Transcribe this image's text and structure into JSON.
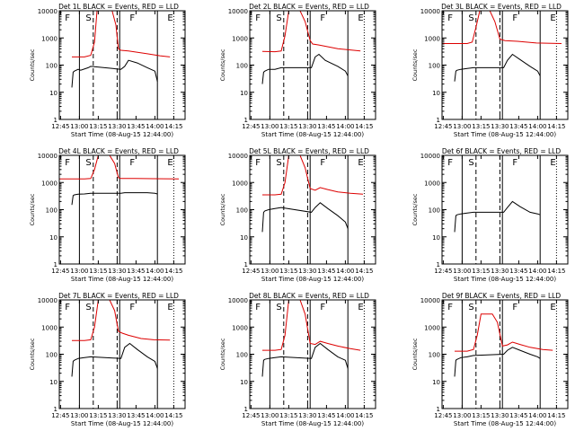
{
  "figure": {
    "colors": {
      "events": "#000000",
      "lld": "#dd0000",
      "axis": "#000000"
    },
    "x_tick_labels": [
      "12:45",
      "13:00",
      "13:15",
      "13:30",
      "13:45",
      "14:00",
      "14:15"
    ],
    "y_tick_labels": [
      "1",
      "10",
      "100",
      "1000",
      "10000"
    ],
    "xlabel": "Start Time (08-Aug-15 12:44:00)",
    "ylabel": "Counts/sec"
  },
  "chart_data": [
    {
      "type": "line",
      "panel": 1,
      "title": "Det 1L BLACK = Events, RED = LLD",
      "xlabel": "Start Time (08-Aug-15 12:44:00)",
      "ylabel": "Counts/sec",
      "x_units": "minutes after 12:44:00",
      "xlim": [
        0,
        100
      ],
      "ylim": [
        1,
        10000
      ],
      "y_scale": "log",
      "x_tick_labels": [
        "12:45",
        "13:00",
        "13:15",
        "13:30",
        "13:45",
        "14:00",
        "14:15"
      ],
      "y_tick_labels": [
        "1",
        "10",
        "100",
        "1000",
        "10000"
      ],
      "marker_letters": [
        "F",
        "S",
        "F",
        "E"
      ],
      "solid_vlines": [
        16,
        48,
        78
      ],
      "dashed_vlines": [
        27,
        46
      ],
      "dotted_vlines": [
        91
      ],
      "series": [
        {
          "name": "LLD",
          "color": "#dd0000",
          "x": [
            10,
            20,
            25,
            28,
            30,
            42,
            45,
            47,
            49,
            55,
            70,
            80,
            88
          ],
          "y": [
            200,
            200,
            230,
            700,
            10000,
            10000,
            3000,
            400,
            350,
            330,
            260,
            220,
            200
          ]
        },
        {
          "name": "Events",
          "color": "#000000",
          "x": [
            10,
            11,
            12,
            15,
            17,
            23,
            25,
            49,
            52,
            55,
            62,
            70,
            76,
            78
          ],
          "y": [
            15,
            55,
            60,
            70,
            65,
            80,
            90,
            70,
            90,
            150,
            120,
            80,
            60,
            25
          ]
        }
      ]
    },
    {
      "type": "line",
      "panel": 2,
      "title": "Det 2L BLACK = Events, RED = LLD",
      "xlabel": "Start Time (08-Aug-15 12:44:00)",
      "ylabel": "Counts/sec",
      "x_units": "minutes after 12:44:00",
      "xlim": [
        0,
        100
      ],
      "ylim": [
        1,
        10000
      ],
      "y_scale": "log",
      "x_tick_labels": [
        "12:45",
        "13:00",
        "13:15",
        "13:30",
        "13:45",
        "14:00",
        "14:15"
      ],
      "y_tick_labels": [
        "1",
        "10",
        "100",
        "1000",
        "10000"
      ],
      "marker_letters": [
        "F",
        "S",
        "F",
        "E"
      ],
      "solid_vlines": [
        16,
        48,
        78
      ],
      "dashed_vlines": [
        27,
        46
      ],
      "dotted_vlines": [
        91
      ],
      "series": [
        {
          "name": "LLD",
          "color": "#dd0000",
          "x": [
            10,
            20,
            25,
            28,
            31,
            40,
            44,
            48,
            50,
            55,
            70,
            88
          ],
          "y": [
            320,
            310,
            330,
            1200,
            10000,
            10000,
            4000,
            800,
            600,
            550,
            400,
            330
          ]
        },
        {
          "name": "Events",
          "color": "#000000",
          "x": [
            10,
            11,
            12,
            15,
            20,
            25,
            49,
            52,
            55,
            60,
            70,
            76,
            78
          ],
          "y": [
            20,
            55,
            60,
            70,
            70,
            80,
            80,
            200,
            250,
            150,
            90,
            60,
            40
          ]
        }
      ]
    },
    {
      "type": "line",
      "panel": 3,
      "title": "Det 3L BLACK = Events, RED = LLD",
      "xlabel": "Start Time (08-Aug-15 12:44:00)",
      "ylabel": "Counts/sec",
      "x_units": "minutes after 12:44:00",
      "xlim": [
        0,
        100
      ],
      "ylim": [
        1,
        10000
      ],
      "y_scale": "log",
      "x_tick_labels": [
        "12:45",
        "13:00",
        "13:15",
        "13:30",
        "13:45",
        "14:00",
        "14:15"
      ],
      "y_tick_labels": [
        "1",
        "10",
        "100",
        "1000",
        "10000"
      ],
      "marker_letters": [
        "F",
        "S",
        "F",
        "E"
      ],
      "solid_vlines": [
        16,
        48,
        78
      ],
      "dashed_vlines": [
        27,
        46
      ],
      "dotted_vlines": [
        91
      ],
      "series": [
        {
          "name": "LLD",
          "color": "#dd0000",
          "x": [
            0,
            20,
            24,
            27,
            30,
            38,
            42,
            46,
            50,
            60,
            75,
            95
          ],
          "y": [
            620,
            620,
            700,
            2500,
            10000,
            10000,
            4000,
            900,
            800,
            750,
            650,
            620
          ]
        },
        {
          "name": "Events",
          "color": "#000000",
          "x": [
            10,
            11,
            12,
            15,
            20,
            25,
            49,
            52,
            56,
            62,
            70,
            76,
            78
          ],
          "y": [
            25,
            60,
            65,
            70,
            75,
            80,
            80,
            150,
            250,
            160,
            90,
            60,
            40
          ]
        }
      ]
    },
    {
      "type": "line",
      "panel": 4,
      "title": "Det 4L BLACK = Events, RED = LLD",
      "xlabel": "Start Time (08-Aug-15 12:44:00)",
      "ylabel": "Counts/sec",
      "x_units": "minutes after 12:44:00",
      "xlim": [
        0,
        100
      ],
      "ylim": [
        1,
        10000
      ],
      "y_scale": "log",
      "x_tick_labels": [
        "12:45",
        "13:00",
        "13:15",
        "13:30",
        "13:45",
        "14:00",
        "14:15"
      ],
      "y_tick_labels": [
        "1",
        "10",
        "100",
        "1000",
        "10000"
      ],
      "marker_letters": [
        "F",
        "S",
        "F",
        "E"
      ],
      "solid_vlines": [
        16,
        48,
        78
      ],
      "dashed_vlines": [
        27,
        46
      ],
      "dotted_vlines": [
        91
      ],
      "series": [
        {
          "name": "LLD",
          "color": "#dd0000",
          "x": [
            0,
            20,
            25,
            28,
            31,
            40,
            44,
            47,
            49,
            60,
            75,
            95
          ],
          "y": [
            1350,
            1350,
            1400,
            3000,
            10000,
            10000,
            5000,
            1500,
            1400,
            1400,
            1380,
            1350
          ]
        },
        {
          "name": "Events",
          "color": "#000000",
          "x": [
            10,
            11,
            12,
            15,
            20,
            25,
            49,
            52,
            60,
            70,
            76,
            78
          ],
          "y": [
            150,
            330,
            350,
            370,
            380,
            400,
            400,
            420,
            420,
            420,
            400,
            380
          ]
        }
      ]
    },
    {
      "type": "line",
      "panel": 5,
      "title": "Det 5L BLACK = Events, RED = LLD",
      "xlabel": "Start Time (08-Aug-15 12:44:00)",
      "ylabel": "Counts/sec",
      "x_units": "minutes after 12:44:00",
      "xlim": [
        0,
        100
      ],
      "ylim": [
        1,
        10000
      ],
      "y_scale": "log",
      "x_tick_labels": [
        "12:45",
        "13:00",
        "13:15",
        "13:30",
        "13:45",
        "14:00",
        "14:15"
      ],
      "y_tick_labels": [
        "1",
        "10",
        "100",
        "1000",
        "10000"
      ],
      "marker_letters": [
        "F",
        "S",
        "F",
        "E"
      ],
      "solid_vlines": [
        16,
        48,
        78
      ],
      "dashed_vlines": [
        27,
        46
      ],
      "dotted_vlines": [
        91
      ],
      "series": [
        {
          "name": "LLD",
          "color": "#dd0000",
          "x": [
            10,
            20,
            25,
            28,
            31,
            40,
            44,
            48,
            52,
            56,
            62,
            70,
            80,
            90
          ],
          "y": [
            350,
            350,
            370,
            1000,
            10000,
            10000,
            3500,
            600,
            520,
            650,
            550,
            450,
            400,
            370
          ]
        },
        {
          "name": "Events",
          "color": "#000000",
          "x": [
            10,
            11,
            12,
            15,
            20,
            25,
            49,
            52,
            56,
            62,
            70,
            76,
            78
          ],
          "y": [
            15,
            80,
            90,
            100,
            110,
            120,
            80,
            120,
            180,
            110,
            60,
            35,
            20
          ]
        }
      ]
    },
    {
      "type": "line",
      "panel": 6,
      "title": "Det 6f BLACK = Events, RED = LLD",
      "xlabel": "Start Time (08-Aug-15 12:44:00)",
      "ylabel": "Counts/sec",
      "x_units": "minutes after 12:44:00",
      "xlim": [
        0,
        100
      ],
      "ylim": [
        1,
        10000
      ],
      "y_scale": "log",
      "x_tick_labels": [
        "12:45",
        "13:00",
        "13:15",
        "13:30",
        "13:45",
        "14:00",
        "14:15"
      ],
      "y_tick_labels": [
        "1",
        "10",
        "100",
        "1000",
        "10000"
      ],
      "marker_letters": [
        "F",
        "S",
        "F",
        "E"
      ],
      "solid_vlines": [
        16,
        48,
        78
      ],
      "dashed_vlines": [
        27,
        46
      ],
      "dotted_vlines": [
        91
      ],
      "series": [
        {
          "name": "Events",
          "color": "#000000",
          "x": [
            10,
            11,
            12,
            15,
            20,
            25,
            49,
            52,
            56,
            62,
            70,
            76,
            78
          ],
          "y": [
            15,
            60,
            65,
            70,
            75,
            80,
            80,
            120,
            200,
            130,
            80,
            70,
            65
          ]
        }
      ]
    },
    {
      "type": "line",
      "panel": 7,
      "title": "Det 7L BLACK = Events, RED = LLD",
      "xlabel": "Start Time (08-Aug-15 12:44:00)",
      "ylabel": "Counts/sec",
      "x_units": "minutes after 12:44:00",
      "xlim": [
        0,
        100
      ],
      "ylim": [
        1,
        10000
      ],
      "y_scale": "log",
      "x_tick_labels": [
        "12:45",
        "13:00",
        "13:15",
        "13:30",
        "13:45",
        "14:00",
        "14:15"
      ],
      "y_tick_labels": [
        "1",
        "10",
        "100",
        "1000",
        "10000"
      ],
      "marker_letters": [
        "F",
        "S",
        "F",
        "E"
      ],
      "solid_vlines": [
        16,
        48,
        78
      ],
      "dashed_vlines": [
        27,
        46
      ],
      "dotted_vlines": [
        91
      ],
      "series": [
        {
          "name": "LLD",
          "color": "#dd0000",
          "x": [
            10,
            20,
            25,
            28,
            31,
            40,
            44,
            47,
            50,
            55,
            65,
            75,
            88
          ],
          "y": [
            320,
            320,
            340,
            1000,
            10000,
            10000,
            4000,
            700,
            600,
            500,
            380,
            340,
            330
          ]
        },
        {
          "name": "Events",
          "color": "#000000",
          "x": [
            10,
            11,
            12,
            15,
            20,
            25,
            49,
            52,
            56,
            62,
            70,
            76,
            78
          ],
          "y": [
            15,
            55,
            60,
            70,
            75,
            80,
            70,
            180,
            250,
            150,
            80,
            55,
            30
          ]
        }
      ]
    },
    {
      "type": "line",
      "panel": 8,
      "title": "Det 8L BLACK = Events, RED = LLD",
      "xlabel": "Start Time (08-Aug-15 12:44:00)",
      "ylabel": "Counts/sec",
      "x_units": "minutes after 12:44:00",
      "xlim": [
        0,
        100
      ],
      "ylim": [
        1,
        10000
      ],
      "y_scale": "log",
      "x_tick_labels": [
        "12:45",
        "13:00",
        "13:15",
        "13:30",
        "13:45",
        "14:00",
        "14:15"
      ],
      "y_tick_labels": [
        "1",
        "10",
        "100",
        "1000",
        "10000"
      ],
      "marker_letters": [
        "F",
        "S",
        "F",
        "E"
      ],
      "solid_vlines": [
        16,
        48,
        78
      ],
      "dashed_vlines": [
        27,
        46
      ],
      "dotted_vlines": [
        91
      ],
      "series": [
        {
          "name": "LLD",
          "color": "#dd0000",
          "x": [
            10,
            20,
            25,
            28,
            31,
            40,
            44,
            48,
            52,
            56,
            62,
            70,
            80,
            88
          ],
          "y": [
            140,
            140,
            150,
            500,
            10000,
            10000,
            3000,
            250,
            230,
            300,
            250,
            200,
            160,
            140
          ]
        },
        {
          "name": "Events",
          "color": "#000000",
          "x": [
            10,
            11,
            12,
            15,
            20,
            25,
            49,
            52,
            56,
            62,
            70,
            76,
            78
          ],
          "y": [
            15,
            60,
            65,
            70,
            75,
            80,
            70,
            180,
            250,
            150,
            80,
            60,
            30
          ]
        }
      ]
    },
    {
      "type": "line",
      "panel": 9,
      "title": "Det 9f BLACK = Events, RED = LLD",
      "xlabel": "Start Time (08-Aug-15 12:44:00)",
      "ylabel": "Counts/sec",
      "x_units": "minutes after 12:44:00",
      "xlim": [
        0,
        100
      ],
      "ylim": [
        1,
        10000
      ],
      "y_scale": "log",
      "x_tick_labels": [
        "12:45",
        "13:00",
        "13:15",
        "13:30",
        "13:45",
        "14:00",
        "14:15"
      ],
      "y_tick_labels": [
        "1",
        "10",
        "100",
        "1000",
        "10000"
      ],
      "marker_letters": [
        "F",
        "S",
        "F",
        "E"
      ],
      "solid_vlines": [
        16,
        48,
        78
      ],
      "dashed_vlines": [
        27,
        46
      ],
      "dotted_vlines": [
        91
      ],
      "series": [
        {
          "name": "LLD",
          "color": "#dd0000",
          "x": [
            10,
            20,
            25,
            28,
            31,
            40,
            44,
            48,
            52,
            56,
            62,
            70,
            80,
            88
          ],
          "y": [
            130,
            130,
            150,
            500,
            3000,
            3000,
            1500,
            200,
            220,
            280,
            230,
            180,
            150,
            140
          ]
        },
        {
          "name": "Events",
          "color": "#000000",
          "x": [
            10,
            11,
            12,
            15,
            20,
            25,
            49,
            52,
            56,
            62,
            70,
            76,
            78
          ],
          "y": [
            15,
            60,
            65,
            75,
            80,
            90,
            100,
            140,
            180,
            140,
            100,
            80,
            70
          ]
        }
      ]
    }
  ]
}
